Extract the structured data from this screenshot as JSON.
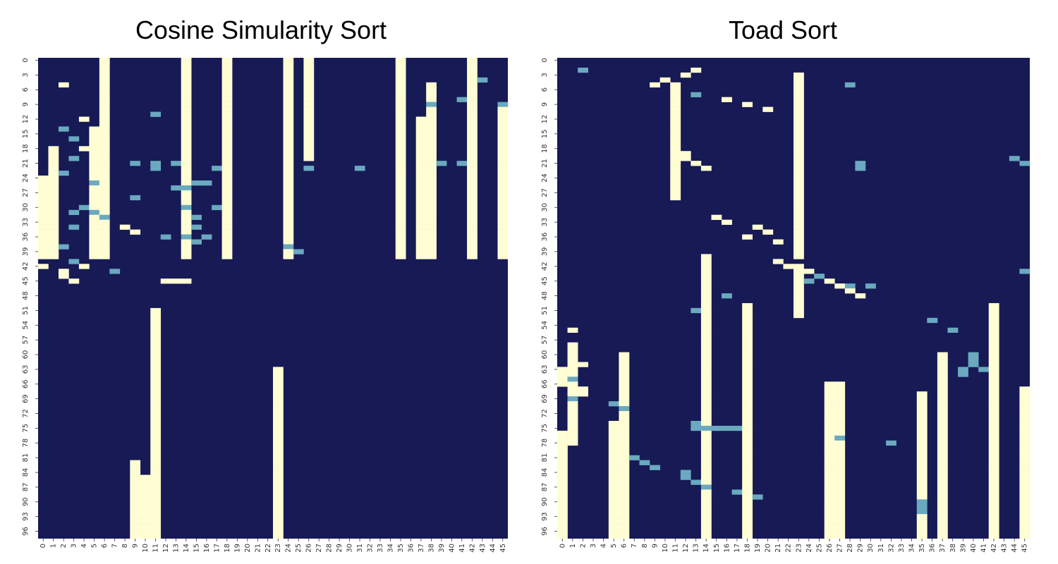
{
  "colors": {
    "off": "#171a55",
    "on": "#fffdd3",
    "mid": "#6aa9bf"
  },
  "chart_data": [
    {
      "type": "heatmap",
      "title": "Cosine Simularity Sort",
      "xlabel": "",
      "ylabel": "",
      "x_ticks": [
        "0",
        "1",
        "2",
        "3",
        "4",
        "5",
        "6",
        "7",
        "8",
        "9",
        "10",
        "11",
        "12",
        "13",
        "14",
        "15",
        "16",
        "17",
        "18",
        "19",
        "20",
        "21",
        "22",
        "23",
        "24",
        "25",
        "26",
        "27",
        "28",
        "29",
        "30",
        "31",
        "32",
        "33",
        "34",
        "35",
        "36",
        "37",
        "38",
        "39",
        "40",
        "41",
        "42",
        "43",
        "44",
        "45"
      ],
      "y_ticks": [
        "0",
        "3",
        "6",
        "9",
        "12",
        "15",
        "18",
        "21",
        "24",
        "27",
        "30",
        "33",
        "36",
        "39",
        "42",
        "45",
        "48",
        "51",
        "54",
        "57",
        "60",
        "63",
        "66",
        "69",
        "72",
        "75",
        "78",
        "81",
        "84",
        "87",
        "90",
        "93",
        "96"
      ],
      "value_levels": {
        "off": 0,
        "mid": 0.5,
        "on": 1
      },
      "n_rows": 98,
      "n_cols": 46,
      "cells_mid": [
        [
          30,
          4
        ],
        [
          31,
          5
        ],
        [
          32,
          6
        ],
        [
          11,
          11
        ],
        [
          21,
          11
        ],
        [
          22,
          11
        ],
        [
          28,
          9
        ],
        [
          26,
          13
        ],
        [
          26,
          14
        ],
        [
          25,
          15
        ],
        [
          25,
          16
        ],
        [
          21,
          9
        ],
        [
          21,
          13
        ],
        [
          22,
          17
        ],
        [
          22,
          26
        ],
        [
          22,
          31
        ],
        [
          21,
          39
        ],
        [
          21,
          41
        ],
        [
          20,
          3
        ],
        [
          30,
          17
        ],
        [
          30,
          14
        ],
        [
          32,
          15
        ],
        [
          34,
          15
        ],
        [
          36,
          12
        ],
        [
          36,
          16
        ],
        [
          31,
          3
        ],
        [
          23,
          2
        ],
        [
          25,
          5
        ],
        [
          9,
          38
        ],
        [
          8,
          41
        ],
        [
          14,
          2
        ],
        [
          16,
          3
        ],
        [
          41,
          3
        ],
        [
          43,
          7
        ],
        [
          4,
          43
        ],
        [
          9,
          45
        ],
        [
          34,
          3
        ],
        [
          38,
          2
        ],
        [
          36,
          14
        ],
        [
          37,
          15
        ],
        [
          38,
          24
        ],
        [
          39,
          25
        ]
      ],
      "cells_on": [
        [
          5,
          2
        ],
        [
          8,
          6
        ],
        [
          12,
          4
        ],
        [
          18,
          4
        ],
        [
          42,
          4
        ],
        [
          45,
          3
        ],
        [
          42,
          0
        ],
        [
          34,
          8
        ],
        [
          36,
          6
        ],
        [
          35,
          9
        ],
        [
          45,
          12
        ],
        [
          45,
          13
        ],
        [
          45,
          14
        ],
        [
          44,
          2
        ],
        [
          43,
          2
        ]
      ],
      "col_runs_on": [
        {
          "col": 6,
          "from": 0,
          "to": 40
        },
        {
          "col": 14,
          "from": 0,
          "to": 40
        },
        {
          "col": 18,
          "from": 0,
          "to": 40
        },
        {
          "col": 24,
          "from": 0,
          "to": 40
        },
        {
          "col": 35,
          "from": 0,
          "to": 40
        },
        {
          "col": 42,
          "from": 0,
          "to": 40
        },
        {
          "col": 45,
          "from": 9,
          "to": 40
        },
        {
          "col": 1,
          "from": 18,
          "to": 40
        },
        {
          "col": 0,
          "from": 24,
          "to": 40
        },
        {
          "col": 5,
          "from": 14,
          "to": 40
        },
        {
          "col": 26,
          "from": 0,
          "to": 20
        },
        {
          "col": 38,
          "from": 5,
          "to": 40
        },
        {
          "col": 37,
          "from": 12,
          "to": 40
        },
        {
          "col": 23,
          "from": 63,
          "to": 97
        },
        {
          "col": 11,
          "from": 51,
          "to": 97
        },
        {
          "col": 9,
          "from": 82,
          "to": 97
        },
        {
          "col": 10,
          "from": 85,
          "to": 97
        }
      ]
    },
    {
      "type": "heatmap",
      "title": "Toad Sort",
      "xlabel": "",
      "ylabel": "",
      "x_ticks": [
        "0",
        "1",
        "2",
        "3",
        "4",
        "5",
        "6",
        "7",
        "8",
        "9",
        "10",
        "11",
        "12",
        "13",
        "14",
        "15",
        "16",
        "17",
        "18",
        "19",
        "20",
        "21",
        "22",
        "23",
        "24",
        "25",
        "26",
        "27",
        "28",
        "29",
        "30",
        "31",
        "32",
        "33",
        "34",
        "35",
        "36",
        "37",
        "38",
        "39",
        "40",
        "41",
        "42",
        "43",
        "44",
        "45"
      ],
      "y_ticks": [
        "0",
        "3",
        "6",
        "9",
        "12",
        "15",
        "18",
        "21",
        "24",
        "27",
        "30",
        "33",
        "36",
        "39",
        "42",
        "45",
        "48",
        "51",
        "54",
        "57",
        "60",
        "63",
        "66",
        "69",
        "72",
        "75",
        "78",
        "81",
        "84",
        "87",
        "90",
        "93",
        "96"
      ],
      "value_levels": {
        "off": 0,
        "mid": 0.5,
        "on": 1
      },
      "n_rows": 98,
      "n_cols": 46,
      "cells_mid": [
        [
          7,
          13
        ],
        [
          2,
          2
        ],
        [
          5,
          28
        ],
        [
          21,
          29
        ],
        [
          22,
          29
        ],
        [
          20,
          44
        ],
        [
          21,
          45
        ],
        [
          45,
          24
        ],
        [
          44,
          25
        ],
        [
          43,
          45
        ],
        [
          46,
          28
        ],
        [
          46,
          30
        ],
        [
          48,
          16
        ],
        [
          51,
          13
        ],
        [
          53,
          36
        ],
        [
          55,
          38
        ],
        [
          60,
          40
        ],
        [
          61,
          40
        ],
        [
          62,
          40
        ],
        [
          63,
          39
        ],
        [
          63,
          41
        ],
        [
          64,
          39
        ],
        [
          65,
          1
        ],
        [
          69,
          1
        ],
        [
          70,
          5
        ],
        [
          71,
          6
        ],
        [
          74,
          13
        ],
        [
          75,
          13
        ],
        [
          75,
          14
        ],
        [
          75,
          15
        ],
        [
          75,
          16
        ],
        [
          75,
          17
        ],
        [
          77,
          27
        ],
        [
          78,
          32
        ],
        [
          81,
          7
        ],
        [
          82,
          8
        ],
        [
          83,
          9
        ],
        [
          84,
          12
        ],
        [
          85,
          12
        ],
        [
          86,
          13
        ],
        [
          87,
          14
        ],
        [
          88,
          17
        ],
        [
          89,
          19
        ],
        [
          90,
          35
        ],
        [
          91,
          35
        ],
        [
          92,
          35
        ]
      ],
      "cells_on": [
        [
          2,
          13
        ],
        [
          3,
          12
        ],
        [
          4,
          10
        ],
        [
          5,
          9
        ],
        [
          8,
          16
        ],
        [
          9,
          18
        ],
        [
          10,
          20
        ],
        [
          19,
          12
        ],
        [
          20,
          12
        ],
        [
          21,
          13
        ],
        [
          22,
          14
        ],
        [
          32,
          15
        ],
        [
          33,
          16
        ],
        [
          34,
          19
        ],
        [
          35,
          20
        ],
        [
          36,
          18
        ],
        [
          37,
          21
        ],
        [
          41,
          21
        ],
        [
          42,
          22
        ],
        [
          43,
          24
        ],
        [
          44,
          25
        ],
        [
          45,
          26
        ],
        [
          46,
          27
        ],
        [
          47,
          28
        ],
        [
          48,
          29
        ],
        [
          55,
          1
        ],
        [
          60,
          1
        ],
        [
          62,
          2
        ],
        [
          63,
          0
        ],
        [
          64,
          0
        ],
        [
          65,
          0
        ],
        [
          66,
          0
        ],
        [
          67,
          2
        ],
        [
          68,
          2
        ]
      ],
      "col_runs_on": [
        {
          "col": 11,
          "from": 5,
          "to": 28
        },
        {
          "col": 23,
          "from": 3,
          "to": 40
        },
        {
          "col": 23,
          "from": 42,
          "to": 52
        },
        {
          "col": 14,
          "from": 40,
          "to": 97
        },
        {
          "col": 18,
          "from": 50,
          "to": 97
        },
        {
          "col": 27,
          "from": 66,
          "to": 97
        },
        {
          "col": 26,
          "from": 66,
          "to": 97
        },
        {
          "col": 42,
          "from": 50,
          "to": 97
        },
        {
          "col": 5,
          "from": 74,
          "to": 97
        },
        {
          "col": 6,
          "from": 60,
          "to": 97
        },
        {
          "col": 35,
          "from": 68,
          "to": 97
        },
        {
          "col": 37,
          "from": 60,
          "to": 97
        },
        {
          "col": 0,
          "from": 76,
          "to": 97
        },
        {
          "col": 1,
          "from": 58,
          "to": 78
        },
        {
          "col": 45,
          "from": 67,
          "to": 97
        }
      ]
    }
  ]
}
